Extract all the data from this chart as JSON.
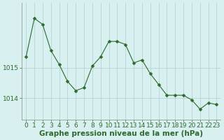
{
  "x": [
    0,
    1,
    2,
    3,
    4,
    5,
    6,
    7,
    8,
    9,
    10,
    11,
    12,
    13,
    14,
    15,
    16,
    17,
    18,
    19,
    20,
    21,
    22,
    23
  ],
  "y": [
    1015.35,
    1016.6,
    1016.4,
    1015.55,
    1015.1,
    1014.55,
    1014.25,
    1014.35,
    1015.05,
    1015.35,
    1015.85,
    1015.85,
    1015.75,
    1015.15,
    1015.25,
    1014.8,
    1014.45,
    1014.1,
    1014.1,
    1014.1,
    1013.95,
    1013.65,
    1013.85,
    1013.8
  ],
  "line_color": "#2d6a2d",
  "marker": "D",
  "marker_size": 2.5,
  "bg_color": "#d8f0f0",
  "grid_color": "#b0cece",
  "yticks": [
    1015.0,
    1014.0
  ],
  "ytick_labels": [
    "1015",
    "1014"
  ],
  "xlim": [
    -0.5,
    23.5
  ],
  "ylim": [
    1013.3,
    1017.1
  ],
  "xlabel": "Graphe pression niveau de la mer (hPa)",
  "tick_fontsize": 6.5,
  "label_fontsize": 7.5
}
